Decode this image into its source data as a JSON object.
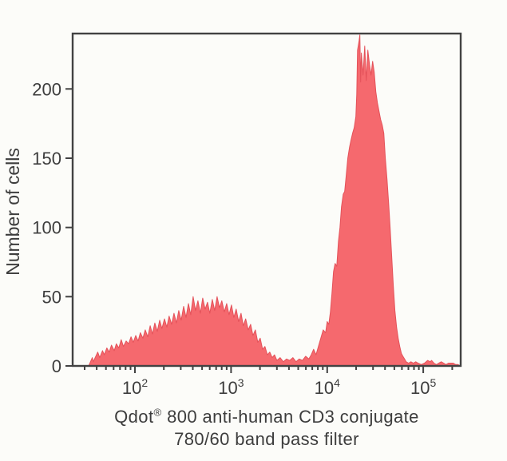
{
  "figure": {
    "background": "#fcfcf9",
    "caption": {
      "line1_pre": "Qdot",
      "line1_sup": "®",
      "line1_post": " 800 anti-human CD3 conjugate",
      "line2": "780/60 band pass filter"
    }
  },
  "chart_data": {
    "type": "area",
    "subtype": "flow-cytometry-histogram",
    "title": "",
    "xlabel": "Qdot® 800 anti-human CD3 conjugate 780/60 band pass filter",
    "ylabel": "Number of cells",
    "x_scale": "log10",
    "x_domain": [
      22.5,
      245000
    ],
    "x_major_ticks": [
      {
        "value": 100,
        "base": "10",
        "exp": "2"
      },
      {
        "value": 1000,
        "base": "10",
        "exp": "3"
      },
      {
        "value": 10000,
        "base": "10",
        "exp": "4"
      },
      {
        "value": 100000,
        "base": "10",
        "exp": "5"
      }
    ],
    "y_domain": [
      0,
      240
    ],
    "y_ticks": [
      0,
      50,
      100,
      150,
      200
    ],
    "grid": false,
    "legend": null,
    "colors": {
      "fill": "#f5696e",
      "stroke": "#e4525a",
      "frame": "#424242",
      "text": "#3d3d3d",
      "background": "#fcfcf9"
    },
    "series": [
      {
        "fill": "#f5696e",
        "stroke": "#e4525a",
        "points": [
          [
            33,
            0
          ],
          [
            34,
            2
          ],
          [
            36,
            6
          ],
          [
            37,
            3
          ],
          [
            38,
            5
          ],
          [
            41,
            10
          ],
          [
            43,
            6
          ],
          [
            46,
            11
          ],
          [
            48,
            8
          ],
          [
            51,
            13
          ],
          [
            54,
            10
          ],
          [
            57,
            15
          ],
          [
            61,
            11
          ],
          [
            64,
            16
          ],
          [
            68,
            13
          ],
          [
            72,
            19
          ],
          [
            76,
            14
          ],
          [
            81,
            18
          ],
          [
            86,
            16
          ],
          [
            91,
            21
          ],
          [
            96,
            17
          ],
          [
            102,
            22
          ],
          [
            108,
            18
          ],
          [
            114,
            24
          ],
          [
            121,
            20
          ],
          [
            128,
            26
          ],
          [
            136,
            21
          ],
          [
            144,
            29
          ],
          [
            152,
            23
          ],
          [
            161,
            31
          ],
          [
            171,
            25
          ],
          [
            181,
            33
          ],
          [
            191,
            27
          ],
          [
            203,
            34
          ],
          [
            215,
            28
          ],
          [
            227,
            36
          ],
          [
            241,
            30
          ],
          [
            255,
            38
          ],
          [
            270,
            31
          ],
          [
            286,
            40
          ],
          [
            303,
            33
          ],
          [
            321,
            43
          ],
          [
            340,
            35
          ],
          [
            360,
            45
          ],
          [
            381,
            37
          ],
          [
            403,
            50
          ],
          [
            427,
            40
          ],
          [
            452,
            47
          ],
          [
            479,
            38
          ],
          [
            507,
            49
          ],
          [
            537,
            41
          ],
          [
            569,
            46
          ],
          [
            602,
            38
          ],
          [
            638,
            48
          ],
          [
            676,
            40
          ],
          [
            716,
            50
          ],
          [
            758,
            42
          ],
          [
            802,
            47
          ],
          [
            850,
            39
          ],
          [
            900,
            45
          ],
          [
            953,
            37
          ],
          [
            1010,
            44
          ],
          [
            1070,
            35
          ],
          [
            1130,
            41
          ],
          [
            1200,
            32
          ],
          [
            1270,
            38
          ],
          [
            1340,
            29
          ],
          [
            1420,
            34
          ],
          [
            1510,
            26
          ],
          [
            1600,
            30
          ],
          [
            1690,
            22
          ],
          [
            1790,
            26
          ],
          [
            1900,
            17
          ],
          [
            2010,
            20
          ],
          [
            2130,
            12
          ],
          [
            2250,
            14
          ],
          [
            2390,
            8
          ],
          [
            2530,
            10
          ],
          [
            2680,
            6
          ],
          [
            2830,
            8
          ],
          [
            3000,
            4
          ],
          [
            3240,
            6
          ],
          [
            3500,
            3
          ],
          [
            3780,
            5
          ],
          [
            4070,
            4
          ],
          [
            4400,
            6
          ],
          [
            4750,
            3
          ],
          [
            5120,
            5
          ],
          [
            5530,
            4
          ],
          [
            5970,
            7
          ],
          [
            6440,
            5
          ],
          [
            6820,
            8
          ],
          [
            7230,
            12
          ],
          [
            7650,
            8
          ],
          [
            8110,
            14
          ],
          [
            8580,
            20
          ],
          [
            9090,
            26
          ],
          [
            9630,
            24
          ],
          [
            10000,
            32
          ],
          [
            10400,
            30
          ],
          [
            10800,
            39
          ],
          [
            11200,
            52
          ],
          [
            11650,
            68
          ],
          [
            12100,
            74
          ],
          [
            12600,
            72
          ],
          [
            13100,
            90
          ],
          [
            13600,
            100
          ],
          [
            14100,
            115
          ],
          [
            14700,
            124
          ],
          [
            15200,
            126
          ],
          [
            15800,
            138
          ],
          [
            16400,
            150
          ],
          [
            17100,
            158
          ],
          [
            17700,
            163
          ],
          [
            18400,
            168
          ],
          [
            19100,
            172
          ],
          [
            19900,
            180
          ],
          [
            20300,
            196
          ],
          [
            20700,
            228
          ],
          [
            21500,
            235
          ],
          [
            21900,
            239
          ],
          [
            22300,
            205
          ],
          [
            22700,
            226
          ],
          [
            23600,
            210
          ],
          [
            24600,
            231
          ],
          [
            25500,
            206
          ],
          [
            26500,
            228
          ],
          [
            27500,
            218
          ],
          [
            28600,
            210
          ],
          [
            29700,
            220
          ],
          [
            30900,
            212
          ],
          [
            32100,
            198
          ],
          [
            33300,
            190
          ],
          [
            34600,
            184
          ],
          [
            36000,
            178
          ],
          [
            37400,
            174
          ],
          [
            38800,
            168
          ],
          [
            40300,
            150
          ],
          [
            41900,
            135
          ],
          [
            43600,
            118
          ],
          [
            45200,
            100
          ],
          [
            47000,
            78
          ],
          [
            48800,
            58
          ],
          [
            50700,
            40
          ],
          [
            52700,
            28
          ],
          [
            54800,
            20
          ],
          [
            56900,
            14
          ],
          [
            59100,
            9
          ],
          [
            61400,
            7
          ],
          [
            63800,
            5
          ],
          [
            66300,
            3
          ],
          [
            70200,
            2
          ],
          [
            74400,
            3
          ],
          [
            78800,
            2
          ],
          [
            83400,
            3
          ],
          [
            88300,
            2
          ],
          [
            95300,
            1
          ],
          [
            103000,
            2
          ],
          [
            111000,
            4
          ],
          [
            118000,
            3
          ],
          [
            122000,
            4
          ],
          [
            129000,
            2
          ],
          [
            137000,
            1
          ],
          [
            145000,
            2
          ],
          [
            154000,
            3
          ],
          [
            163000,
            2
          ],
          [
            172000,
            1
          ],
          [
            183000,
            2
          ],
          [
            193000,
            2
          ],
          [
            205000,
            2
          ],
          [
            217000,
            1
          ],
          [
            230000,
            1
          ],
          [
            243000,
            0
          ]
        ]
      }
    ]
  }
}
